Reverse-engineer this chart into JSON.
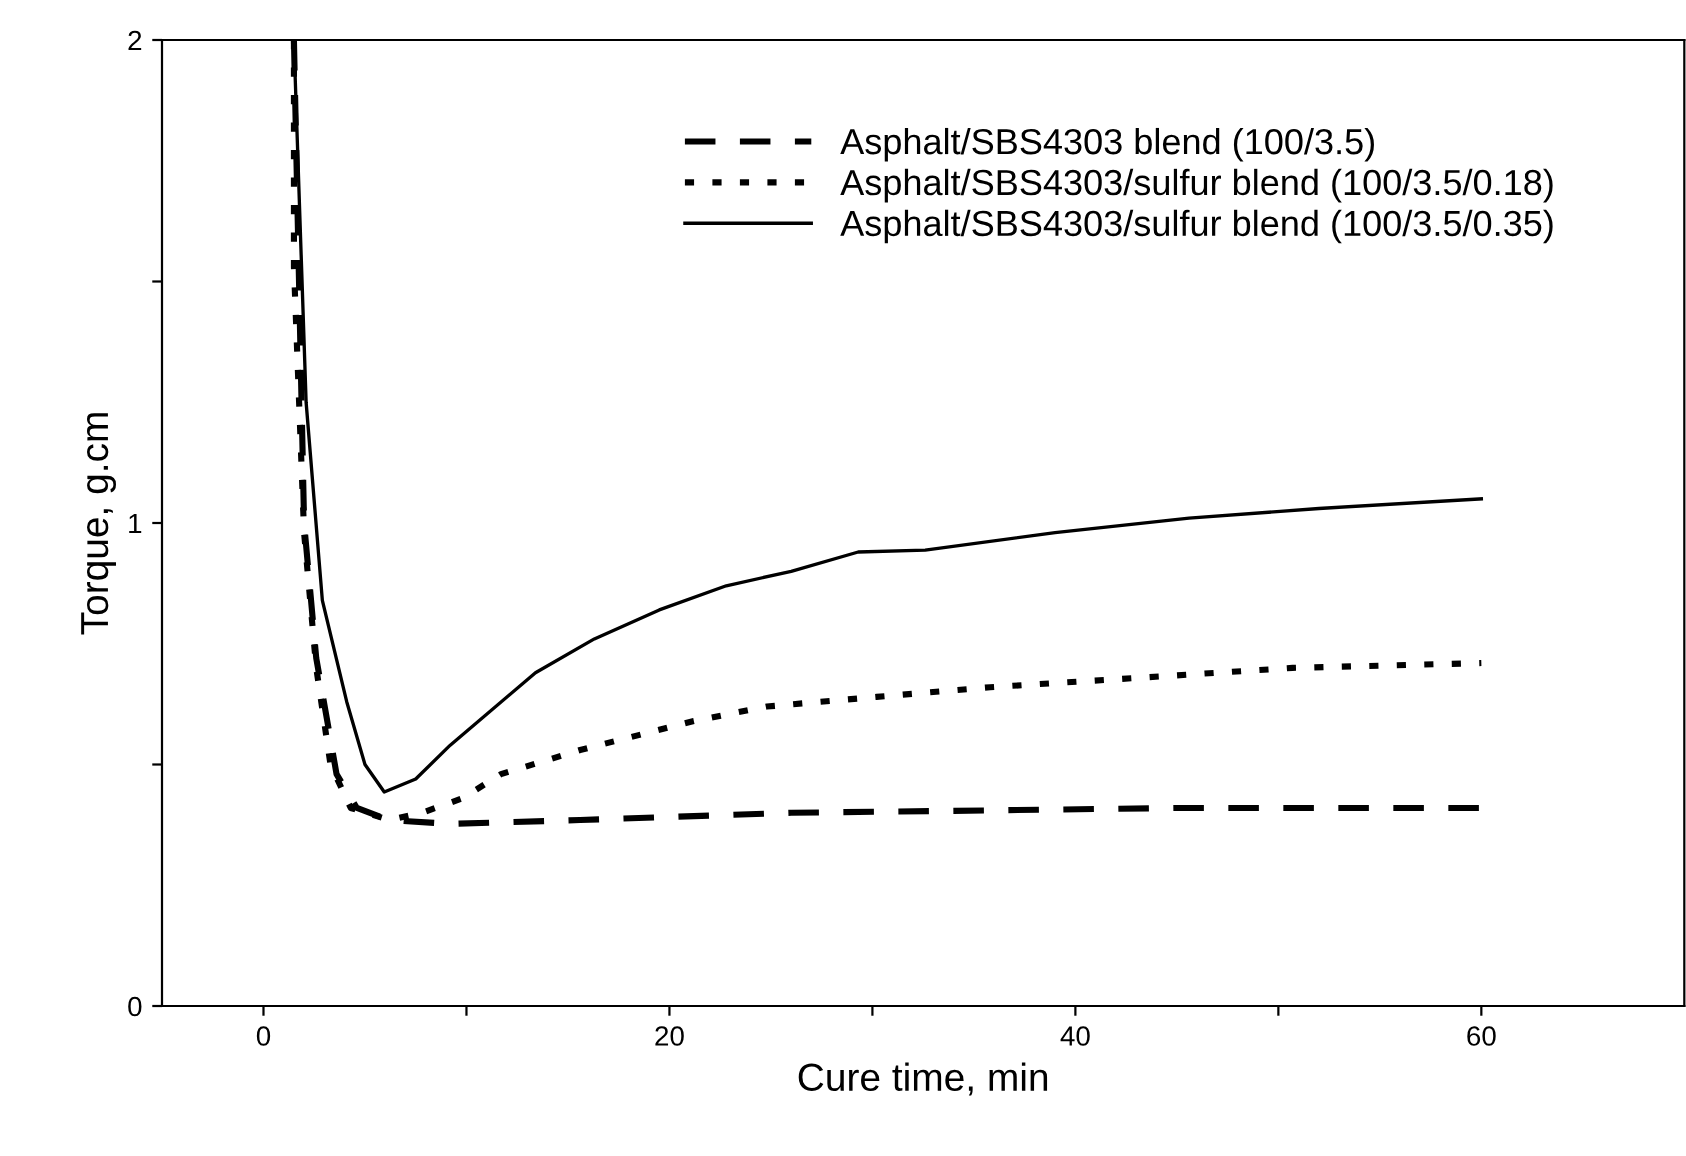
{
  "chart_data": {
    "type": "line",
    "xlabel": "Cure time, min",
    "ylabel": "Torque, g.cm",
    "xlim": [
      -5,
      70
    ],
    "xticks": [
      0,
      {
        "value": 10,
        "label": null
      },
      20,
      {
        "value": 30,
        "label": null
      },
      40,
      {
        "value": 50,
        "label": null
      },
      60
    ],
    "ylim": [
      0,
      2
    ],
    "yticks": [
      0,
      {
        "value": 0.5,
        "label": null
      },
      1,
      {
        "value": 1.5,
        "label": null
      },
      2
    ],
    "grid": false,
    "legend": "top right",
    "marker": "none",
    "series": [
      {
        "name": "Asphalt/SBS4303 blend (100/3.5)",
        "color": "#000000",
        "line_style": "dashed",
        "x": [
          1.5,
          2.0,
          2.6,
          3.6,
          4.6,
          6.2,
          9.2,
          15.6,
          26,
          35.8,
          45,
          52,
          60
        ],
        "values": [
          2,
          1.0,
          0.72,
          0.48,
          0.41,
          0.385,
          0.377,
          0.385,
          0.4,
          0.405,
          0.41,
          0.41,
          0.41
        ]
      },
      {
        "name": "Asphalt/SBS4303/sulfur blend (100/3.5/0.18)",
        "color": "#000000",
        "line_style": "dotted",
        "x": [
          1.5,
          1.5,
          2.0,
          2.6,
          3.3,
          4.3,
          6.2,
          7.8,
          9.8,
          11.7,
          15.6,
          21.2,
          24.8,
          30.2,
          35.8,
          43.3,
          50.7,
          60
        ],
        "values": [
          2,
          1.53,
          0.98,
          0.7,
          0.5,
          0.41,
          0.385,
          0.4,
          0.43,
          0.48,
          0.53,
          0.59,
          0.62,
          0.64,
          0.66,
          0.68,
          0.7,
          0.71
        ]
      },
      {
        "name": "Asphalt/SBS4303/sulfur blend (100/3.5/0.35)",
        "color": "#000000",
        "line_style": "solid",
        "x": [
          1.5,
          2.1,
          2.9,
          4.1,
          5.0,
          5.95,
          7.5,
          9.2,
          13.4,
          16.3,
          19.5,
          22.8,
          26,
          29.3,
          32.6,
          39,
          45.6,
          52,
          60
        ],
        "values": [
          2,
          1.25,
          0.84,
          0.63,
          0.5,
          0.443,
          0.47,
          0.54,
          0.69,
          0.76,
          0.82,
          0.87,
          0.9,
          0.94,
          0.944,
          0.98,
          1.01,
          1.03,
          1.05
        ]
      }
    ]
  }
}
